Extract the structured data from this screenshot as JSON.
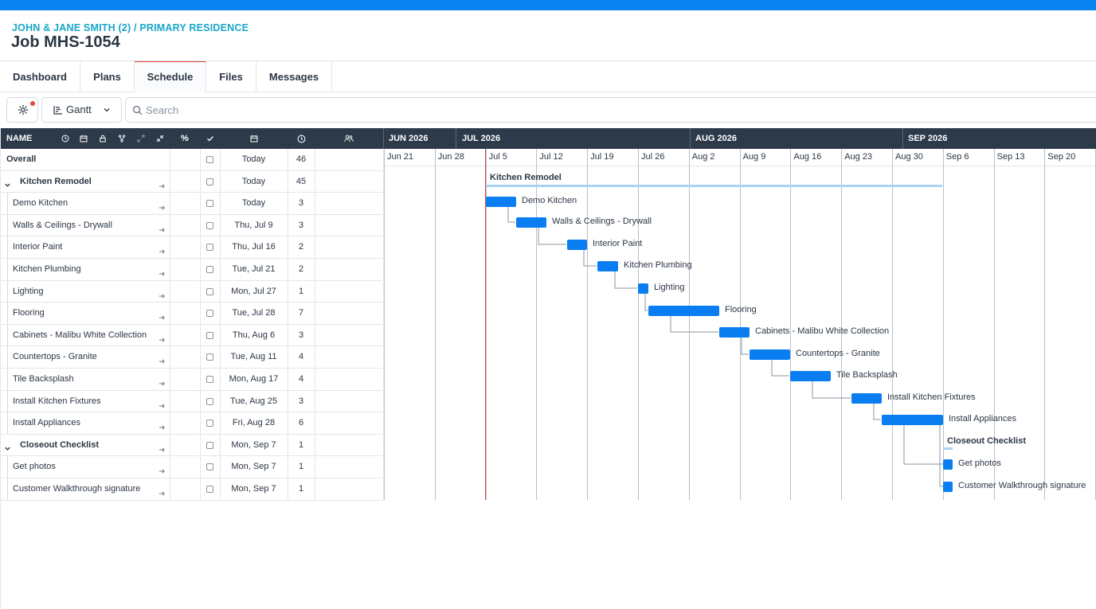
{
  "header": {
    "breadcrumb": "JOHN & JANE SMITH (2) / PRIMARY RESIDENCE",
    "title": "Job MHS-1054"
  },
  "tabs": [
    {
      "label": "Dashboard",
      "active": false
    },
    {
      "label": "Plans",
      "active": false
    },
    {
      "label": "Schedule",
      "active": true
    },
    {
      "label": "Files",
      "active": false
    },
    {
      "label": "Messages",
      "active": false
    }
  ],
  "toolbar": {
    "settings_icon": "gear-icon",
    "view_label": "Gantt",
    "search_placeholder": "Search"
  },
  "columns": {
    "name": "NAME",
    "percent": "%",
    "done": "check-icon",
    "date": "calendar-icon",
    "duration": "clock-icon",
    "assignees": "users-icon"
  },
  "months": [
    "JUN 2026",
    "JUL 2026",
    "AUG 2026",
    "SEP 2026"
  ],
  "weeks": [
    "Jun 21",
    "Jun 28",
    "Jul 5",
    "Jul 12",
    "Jul 19",
    "Jul 26",
    "Aug 2",
    "Aug 9",
    "Aug 16",
    "Aug 23",
    "Aug 30",
    "Sep 6",
    "Sep 13",
    "Sep 20"
  ],
  "rows": [
    {
      "name": "Overall",
      "date": "Today",
      "duration": "46",
      "type": "overall"
    },
    {
      "name": "Kitchen Remodel",
      "date": "Today",
      "duration": "45",
      "type": "group"
    },
    {
      "name": "Demo Kitchen",
      "date": "Today",
      "duration": "3",
      "type": "task"
    },
    {
      "name": "Walls & Ceilings - Drywall",
      "date": "Thu, Jul 9",
      "duration": "3",
      "type": "task"
    },
    {
      "name": "Interior Paint",
      "date": "Thu, Jul 16",
      "duration": "2",
      "type": "task"
    },
    {
      "name": "Kitchen Plumbing",
      "date": "Tue, Jul 21",
      "duration": "2",
      "type": "task"
    },
    {
      "name": "Lighting",
      "date": "Mon, Jul 27",
      "duration": "1",
      "type": "task"
    },
    {
      "name": "Flooring",
      "date": "Tue, Jul 28",
      "duration": "7",
      "type": "task"
    },
    {
      "name": "Cabinets - Malibu White Collection",
      "date": "Thu, Aug 6",
      "duration": "3",
      "type": "task"
    },
    {
      "name": "Countertops - Granite",
      "date": "Tue, Aug 11",
      "duration": "4",
      "type": "task"
    },
    {
      "name": "Tile Backsplash",
      "date": "Mon, Aug 17",
      "duration": "4",
      "type": "task"
    },
    {
      "name": "Install Kitchen Fixtures",
      "date": "Tue, Aug 25",
      "duration": "3",
      "type": "task"
    },
    {
      "name": "Install Appliances",
      "date": "Fri, Aug 28",
      "duration": "6",
      "type": "task"
    },
    {
      "name": "Closeout Checklist",
      "date": "Mon, Sep 7",
      "duration": "1",
      "type": "group"
    },
    {
      "name": "Get photos",
      "date": "Mon, Sep 7",
      "duration": "1",
      "type": "task"
    },
    {
      "name": "Customer Walkthrough signature",
      "date": "Mon, Sep 7",
      "duration": "1",
      "type": "task"
    }
  ],
  "gantt": {
    "groups": [
      {
        "label": "Kitchen Remodel"
      },
      {
        "label": "Closeout Checklist"
      }
    ],
    "bars": [
      {
        "label": "Demo Kitchen"
      },
      {
        "label": "Walls & Ceilings - Drywall"
      },
      {
        "label": "Interior Paint"
      },
      {
        "label": "Kitchen Plumbing"
      },
      {
        "label": "Lighting"
      },
      {
        "label": "Flooring"
      },
      {
        "label": "Cabinets - Malibu White Collection"
      },
      {
        "label": "Countertops - Granite"
      },
      {
        "label": "Tile Backsplash"
      },
      {
        "label": "Install Kitchen Fixtures"
      },
      {
        "label": "Install Appliances"
      },
      {
        "label": "Get photos"
      },
      {
        "label": "Customer Walkthrough signature"
      }
    ]
  },
  "colors": {
    "accent": "#0a84f0",
    "bar": "#0a7ef0",
    "header_bg": "#2c3a4a",
    "breadcrumb": "#17a6c9",
    "today_line": "#e0483e"
  }
}
